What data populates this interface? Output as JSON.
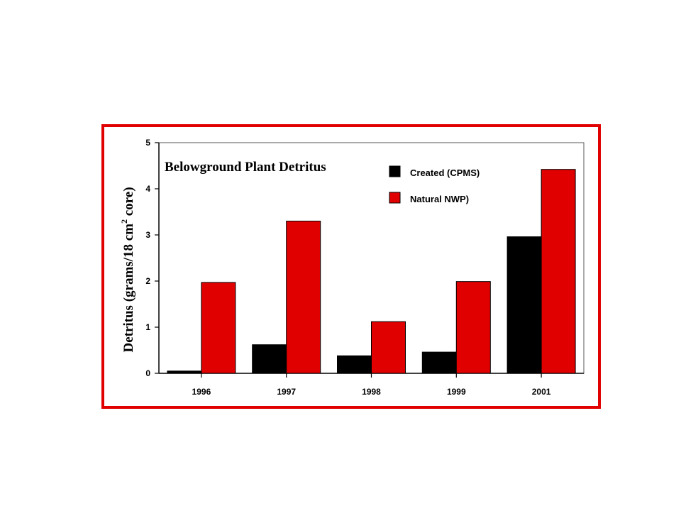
{
  "chart_data": {
    "type": "bar",
    "title": "Belowground Plant Detritus",
    "ylabel": "Detritus (grams/18 cm2 core)",
    "ylabel_parts": {
      "before": "Detritus (grams/18 cm",
      "superscript": "2",
      "after": " core)"
    },
    "xlabel": "",
    "categories": [
      "1996",
      "1997",
      "1998",
      "1999",
      "2001"
    ],
    "series": [
      {
        "name": "Created (CPMS)",
        "color": "#000000",
        "values": [
          0.05,
          0.62,
          0.38,
          0.46,
          2.96
        ]
      },
      {
        "name": "Natural NWP)",
        "color": "#e00000",
        "values": [
          1.97,
          3.3,
          1.12,
          1.99,
          4.42
        ]
      }
    ],
    "ylim": [
      0,
      5
    ],
    "yticks": [
      "0",
      "1",
      "2",
      "3",
      "4",
      "5"
    ],
    "grid": false,
    "legend_position": "top-right",
    "frame_color": "#e00000"
  }
}
